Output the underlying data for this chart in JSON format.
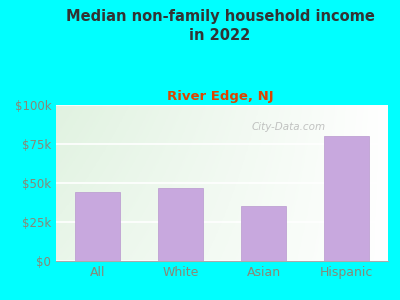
{
  "title": "Median non-family household income\nin 2022",
  "subtitle": "River Edge, NJ",
  "categories": [
    "All",
    "White",
    "Asian",
    "Hispanic"
  ],
  "values": [
    44000,
    47000,
    35000,
    80000
  ],
  "bar_color": "#c8a8de",
  "bar_edge_color": "#b898ce",
  "background_color": "#00ffff",
  "title_color": "#333333",
  "subtitle_color": "#dd4400",
  "tick_color": "#888877",
  "watermark": "City-Data.com",
  "ylim": [
    0,
    100000
  ],
  "yticks": [
    0,
    25000,
    50000,
    75000,
    100000
  ],
  "ytick_labels": [
    "$0",
    "$25k",
    "$50k",
    "$75k",
    "$100k"
  ]
}
